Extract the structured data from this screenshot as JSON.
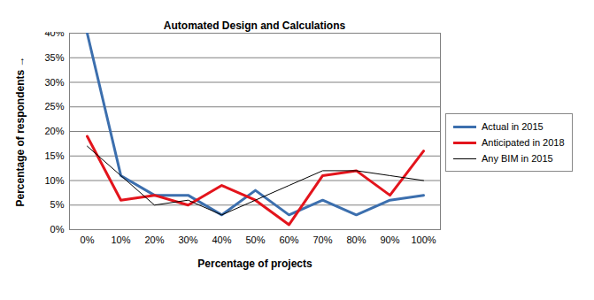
{
  "chart_data": {
    "type": "line",
    "title": "Automated Design and Calculations",
    "x_label": "Percentage of projects",
    "y_label": "Percentage of respondents",
    "categories": [
      "0%",
      "10%",
      "20%",
      "30%",
      "40%",
      "50%",
      "60%",
      "70%",
      "80%",
      "90%",
      "100%"
    ],
    "series": [
      {
        "name": "Actual in 2015",
        "color": "#3c6fae",
        "line_style": "solid",
        "values": [
          40,
          11,
          7,
          7,
          3,
          8,
          3,
          6,
          3,
          6,
          7
        ]
      },
      {
        "name": "Anticipated in 2018",
        "color": "#e3141c",
        "line_style": "solid",
        "values": [
          19,
          6,
          7,
          5,
          9,
          6,
          1,
          11,
          12,
          7,
          16
        ]
      },
      {
        "name": "Any BIM in 2015",
        "color": "#000000",
        "line_style": "thin",
        "values": [
          17,
          11,
          5,
          6,
          3,
          6,
          9,
          12,
          12,
          11,
          10
        ]
      }
    ],
    "ylim": [
      0,
      40
    ],
    "yticks": [
      {
        "value": 0,
        "label": "0%"
      },
      {
        "value": 5,
        "label": "5%"
      },
      {
        "value": 10,
        "label": "10%"
      },
      {
        "value": 15,
        "label": "15%"
      },
      {
        "value": 20,
        "label": "20%"
      },
      {
        "value": 25,
        "label": "25%"
      },
      {
        "value": 30,
        "label": "30%"
      },
      {
        "value": 35,
        "label": "35%"
      },
      {
        "value": 40,
        "label": "40%"
      }
    ],
    "grid": true,
    "legend": "right"
  }
}
